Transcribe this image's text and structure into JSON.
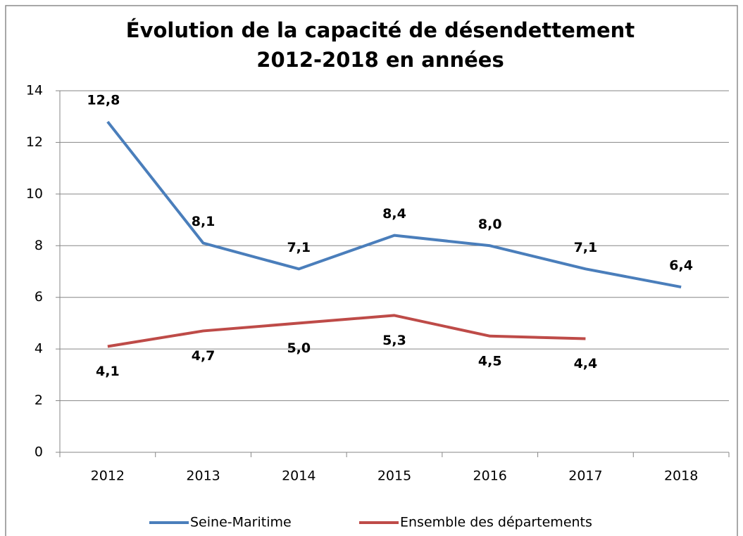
{
  "chart_data": {
    "type": "line",
    "title": [
      "Évolution de la capacité de désendettement",
      "2012-2018 en années"
    ],
    "categories": [
      "2012",
      "2013",
      "2014",
      "2015",
      "2016",
      "2017",
      "2018"
    ],
    "series": [
      {
        "name": "Seine-Maritime",
        "color": "#4a7ebb",
        "values": [
          12.8,
          8.1,
          7.1,
          8.4,
          8.0,
          7.1,
          6.4
        ],
        "value_labels": [
          "12,8",
          "8,1",
          "7,1",
          "8,4",
          "8,0",
          "7,1",
          "6,4"
        ]
      },
      {
        "name": "Ensemble des départements",
        "color": "#be4b48",
        "values": [
          4.1,
          4.7,
          5.0,
          5.3,
          4.5,
          4.4,
          null
        ],
        "value_labels": [
          "4,1",
          "4,7",
          "5,0",
          "5,3",
          "4,5",
          "4,4",
          null
        ]
      }
    ],
    "ylim": [
      0,
      14
    ],
    "yticks": [
      0,
      2,
      4,
      6,
      8,
      10,
      12,
      14
    ],
    "grid": true,
    "legend": "bottom"
  }
}
